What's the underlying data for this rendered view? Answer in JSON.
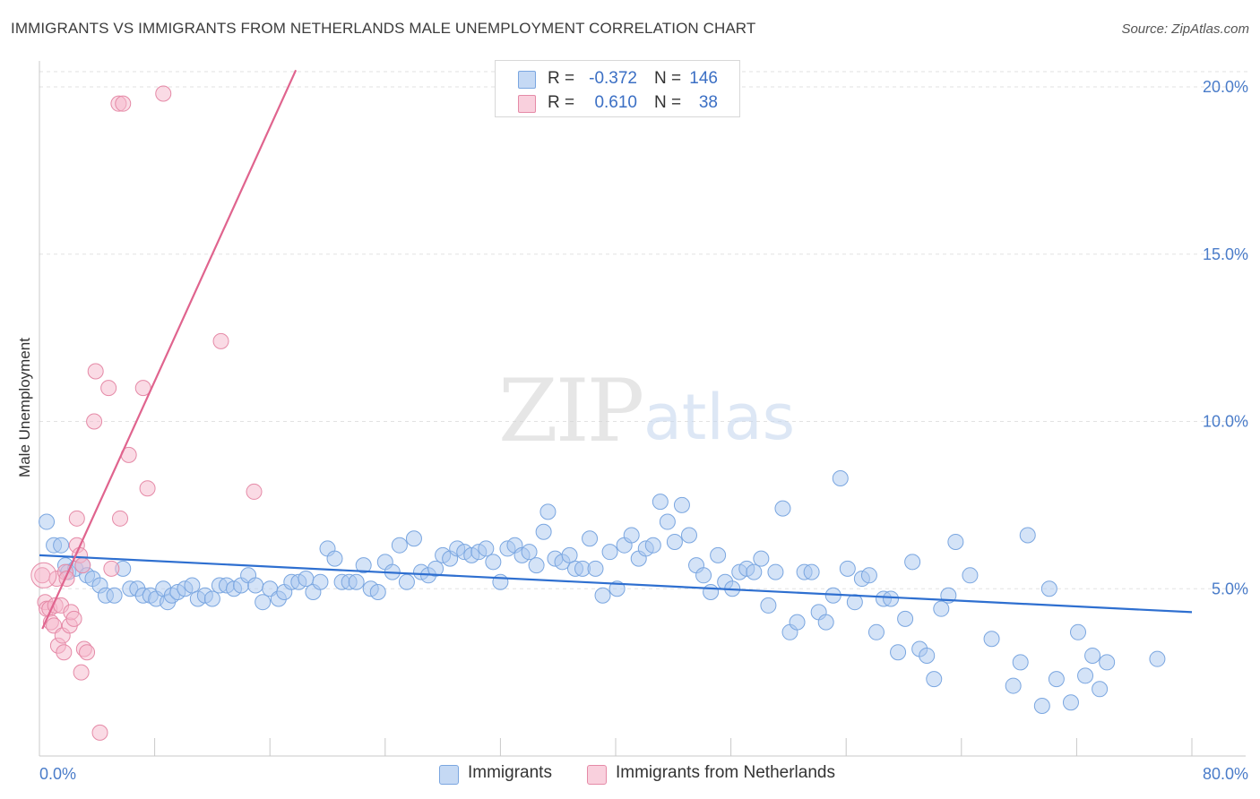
{
  "header": {
    "title": "IMMIGRANTS VS IMMIGRANTS FROM NETHERLANDS MALE UNEMPLOYMENT CORRELATION CHART",
    "source": "Source: ZipAtlas.com"
  },
  "watermark": {
    "zip": "ZIP",
    "atlas": "atlas"
  },
  "legend": {
    "rows": [
      {
        "r_label": "R =",
        "r_value": "-0.372",
        "n_label": "N =",
        "n_value": "146",
        "color": "#a9c7ef"
      },
      {
        "r_label": "R =",
        "r_value": "0.610",
        "n_label": "N =",
        "n_value": "38",
        "color": "#f5b8cb"
      }
    ]
  },
  "bottom_legend": [
    {
      "label": "Immigrants",
      "color": "#a9c7ef"
    },
    {
      "label": "Immigrants from Netherlands",
      "color": "#f5b8cb"
    }
  ],
  "chart_data": {
    "type": "scatter",
    "title": "IMMIGRANTS VS IMMIGRANTS FROM NETHERLANDS MALE UNEMPLOYMENT CORRELATION CHART",
    "xlabel": "",
    "ylabel": "Male Unemployment",
    "xlim": [
      0,
      80
    ],
    "ylim": [
      0,
      20.5
    ],
    "x_tick_labels": [
      "0.0%",
      "80.0%"
    ],
    "y_ticks": [
      5,
      10,
      15,
      20
    ],
    "y_tick_labels": [
      "5.0%",
      "10.0%",
      "15.0%",
      "20.0%"
    ],
    "grid": true,
    "series": [
      {
        "name": "Immigrants",
        "color": "#a9c7ef",
        "stroke": "#7aa6e0",
        "trend": {
          "x0": 0,
          "y0": 6.0,
          "x1": 80,
          "y1": 4.3,
          "color": "#2e6fd0"
        },
        "points": [
          [
            0.5,
            7.0
          ],
          [
            1.0,
            6.3
          ],
          [
            1.5,
            6.3
          ],
          [
            1.8,
            5.7
          ],
          [
            2.0,
            5.5
          ],
          [
            2.5,
            5.6
          ],
          [
            3.0,
            5.7
          ],
          [
            3.3,
            5.4
          ],
          [
            3.7,
            5.3
          ],
          [
            4.2,
            5.1
          ],
          [
            4.6,
            4.8
          ],
          [
            5.2,
            4.8
          ],
          [
            5.8,
            5.6
          ],
          [
            6.3,
            5.0
          ],
          [
            6.8,
            5.0
          ],
          [
            7.2,
            4.8
          ],
          [
            7.7,
            4.8
          ],
          [
            8.1,
            4.7
          ],
          [
            8.6,
            5.0
          ],
          [
            8.9,
            4.6
          ],
          [
            9.2,
            4.8
          ],
          [
            9.6,
            4.9
          ],
          [
            10.1,
            5.0
          ],
          [
            10.6,
            5.1
          ],
          [
            11.0,
            4.7
          ],
          [
            11.5,
            4.8
          ],
          [
            12.0,
            4.7
          ],
          [
            12.5,
            5.1
          ],
          [
            13.0,
            5.1
          ],
          [
            13.5,
            5.0
          ],
          [
            14.0,
            5.1
          ],
          [
            14.5,
            5.4
          ],
          [
            15.0,
            5.1
          ],
          [
            15.5,
            4.6
          ],
          [
            16.0,
            5.0
          ],
          [
            16.6,
            4.7
          ],
          [
            17.0,
            4.9
          ],
          [
            17.5,
            5.2
          ],
          [
            18.0,
            5.2
          ],
          [
            18.5,
            5.3
          ],
          [
            19.0,
            4.9
          ],
          [
            19.5,
            5.2
          ],
          [
            20.0,
            6.2
          ],
          [
            20.5,
            5.9
          ],
          [
            21.0,
            5.2
          ],
          [
            21.5,
            5.2
          ],
          [
            22.0,
            5.2
          ],
          [
            22.5,
            5.7
          ],
          [
            23.0,
            5.0
          ],
          [
            23.5,
            4.9
          ],
          [
            24.0,
            5.8
          ],
          [
            24.5,
            5.5
          ],
          [
            25.0,
            6.3
          ],
          [
            25.5,
            5.2
          ],
          [
            26.0,
            6.5
          ],
          [
            26.5,
            5.5
          ],
          [
            27.0,
            5.4
          ],
          [
            27.5,
            5.6
          ],
          [
            28.0,
            6.0
          ],
          [
            28.5,
            5.9
          ],
          [
            29.0,
            6.2
          ],
          [
            29.5,
            6.1
          ],
          [
            30.0,
            6.0
          ],
          [
            30.5,
            6.1
          ],
          [
            31.0,
            6.2
          ],
          [
            31.5,
            5.8
          ],
          [
            32.0,
            5.2
          ],
          [
            32.5,
            6.2
          ],
          [
            33.0,
            6.3
          ],
          [
            33.5,
            6.0
          ],
          [
            34.0,
            6.1
          ],
          [
            34.5,
            5.7
          ],
          [
            35.0,
            6.7
          ],
          [
            35.3,
            7.3
          ],
          [
            35.8,
            5.9
          ],
          [
            36.3,
            5.8
          ],
          [
            36.8,
            6.0
          ],
          [
            37.2,
            5.6
          ],
          [
            37.7,
            5.6
          ],
          [
            38.2,
            6.5
          ],
          [
            38.6,
            5.6
          ],
          [
            39.1,
            4.8
          ],
          [
            39.6,
            6.1
          ],
          [
            40.1,
            5.0
          ],
          [
            40.6,
            6.3
          ],
          [
            41.1,
            6.6
          ],
          [
            41.6,
            5.9
          ],
          [
            42.1,
            6.2
          ],
          [
            42.6,
            6.3
          ],
          [
            43.1,
            7.6
          ],
          [
            43.6,
            7.0
          ],
          [
            44.1,
            6.4
          ],
          [
            44.6,
            7.5
          ],
          [
            45.1,
            6.6
          ],
          [
            45.6,
            5.7
          ],
          [
            46.1,
            5.4
          ],
          [
            46.6,
            4.9
          ],
          [
            47.1,
            6.0
          ],
          [
            47.6,
            5.2
          ],
          [
            48.1,
            5.0
          ],
          [
            48.6,
            5.5
          ],
          [
            49.1,
            5.6
          ],
          [
            49.6,
            5.5
          ],
          [
            50.1,
            5.9
          ],
          [
            50.6,
            4.5
          ],
          [
            51.1,
            5.5
          ],
          [
            51.6,
            7.4
          ],
          [
            52.1,
            3.7
          ],
          [
            52.6,
            4.0
          ],
          [
            53.1,
            5.5
          ],
          [
            53.6,
            5.5
          ],
          [
            54.1,
            4.3
          ],
          [
            54.6,
            4.0
          ],
          [
            55.1,
            4.8
          ],
          [
            55.6,
            8.3
          ],
          [
            56.1,
            5.6
          ],
          [
            56.6,
            4.6
          ],
          [
            57.1,
            5.3
          ],
          [
            57.6,
            5.4
          ],
          [
            58.1,
            3.7
          ],
          [
            58.6,
            4.7
          ],
          [
            59.1,
            4.7
          ],
          [
            59.6,
            3.1
          ],
          [
            60.1,
            4.1
          ],
          [
            60.6,
            5.8
          ],
          [
            61.1,
            3.2
          ],
          [
            61.6,
            3.0
          ],
          [
            62.1,
            2.3
          ],
          [
            62.6,
            4.4
          ],
          [
            63.1,
            4.8
          ],
          [
            63.6,
            6.4
          ],
          [
            64.6,
            5.4
          ],
          [
            66.1,
            3.5
          ],
          [
            67.6,
            2.1
          ],
          [
            68.1,
            2.8
          ],
          [
            68.6,
            6.6
          ],
          [
            69.6,
            1.5
          ],
          [
            70.1,
            5.0
          ],
          [
            70.6,
            2.3
          ],
          [
            71.6,
            1.6
          ],
          [
            72.1,
            3.7
          ],
          [
            72.6,
            2.4
          ],
          [
            73.1,
            3.0
          ],
          [
            73.6,
            2.0
          ],
          [
            74.1,
            2.8
          ],
          [
            77.6,
            2.9
          ]
        ]
      },
      {
        "name": "Immigrants from Netherlands",
        "color": "#f5b8cb",
        "stroke": "#e58aa7",
        "trend": {
          "x0": 0.2,
          "y0": 3.8,
          "x1": 17.8,
          "y1": 20.5,
          "color": "#e0648e"
        },
        "points": [
          [
            0.2,
            5.4
          ],
          [
            0.4,
            4.6
          ],
          [
            0.5,
            4.4
          ],
          [
            0.7,
            4.4
          ],
          [
            0.8,
            4.0
          ],
          [
            1.0,
            3.9
          ],
          [
            1.1,
            4.5
          ],
          [
            1.2,
            5.3
          ],
          [
            1.3,
            3.3
          ],
          [
            1.5,
            4.5
          ],
          [
            1.6,
            3.6
          ],
          [
            1.7,
            3.1
          ],
          [
            1.8,
            5.5
          ],
          [
            1.9,
            5.3
          ],
          [
            2.1,
            3.9
          ],
          [
            2.2,
            4.3
          ],
          [
            2.4,
            4.1
          ],
          [
            2.6,
            6.3
          ],
          [
            2.6,
            7.1
          ],
          [
            2.8,
            6.0
          ],
          [
            2.9,
            2.5
          ],
          [
            3.0,
            5.7
          ],
          [
            3.1,
            3.2
          ],
          [
            3.3,
            3.1
          ],
          [
            3.8,
            10.0
          ],
          [
            3.9,
            11.5
          ],
          [
            4.2,
            0.7
          ],
          [
            4.8,
            11.0
          ],
          [
            5.0,
            5.6
          ],
          [
            5.5,
            19.5
          ],
          [
            5.6,
            7.1
          ],
          [
            5.8,
            19.5
          ],
          [
            6.2,
            9.0
          ],
          [
            7.2,
            11.0
          ],
          [
            7.5,
            8.0
          ],
          [
            8.6,
            19.8
          ],
          [
            12.6,
            12.4
          ],
          [
            14.9,
            7.9
          ]
        ]
      }
    ]
  }
}
